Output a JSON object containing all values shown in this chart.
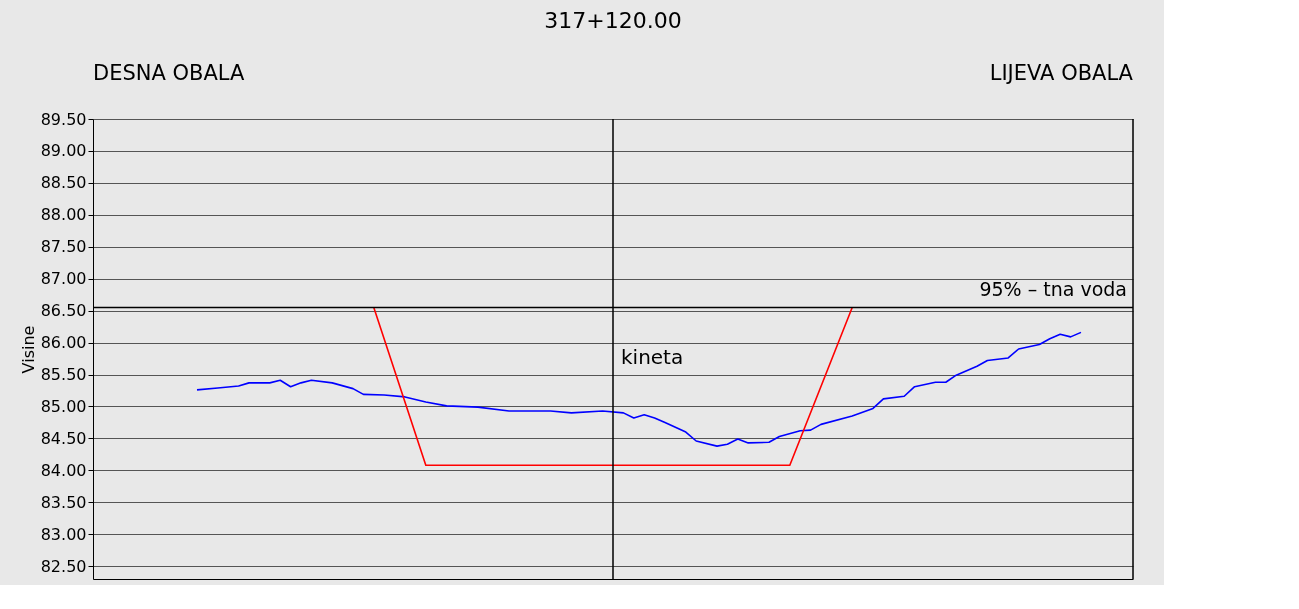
{
  "chart_data": {
    "type": "line",
    "title": "317+120.00",
    "ylabel": "Visine",
    "categories": [
      null,
      null,
      null,
      null,
      null,
      null,
      null,
      null,
      null,
      null,
      null,
      null,
      null,
      null,
      null,
      null,
      null,
      null,
      null,
      null,
      null,
      null,
      null,
      null,
      null,
      null,
      null,
      null,
      null,
      null,
      null,
      null,
      null,
      null,
      null,
      null,
      null,
      null,
      null,
      null,
      null,
      null,
      null,
      null,
      null,
      null,
      null,
      null,
      null,
      null,
      null,
      null,
      null,
      null,
      null,
      null,
      null,
      null,
      null,
      null,
      null,
      null,
      null,
      null,
      null,
      null,
      null,
      null,
      null,
      null,
      null,
      null,
      null,
      null,
      null,
      null,
      null,
      null,
      null,
      null,
      null,
      null,
      null,
      null,
      null,
      null,
      null,
      null,
      null,
      null,
      null,
      null,
      null,
      null,
      null,
      null,
      null,
      null,
      null,
      null,
      null
    ],
    "ylim": [
      82.3,
      89.5
    ],
    "yticks": [
      {
        "value": 82.5,
        "label": "82.50"
      },
      {
        "value": 83,
        "label": "83.00"
      },
      {
        "value": 83.5,
        "label": "83.50"
      },
      {
        "value": 84,
        "label": "84.00"
      },
      {
        "value": 84.5,
        "label": "84.50"
      },
      {
        "value": 85,
        "label": "85.00"
      },
      {
        "value": 85.5,
        "label": "85.50"
      },
      {
        "value": 86,
        "label": "86.00"
      },
      {
        "value": 86.5,
        "label": "86.50"
      },
      {
        "value": 87,
        "label": "87.00"
      },
      {
        "value": 87.5,
        "label": "87.50"
      },
      {
        "value": 88,
        "label": "88.00"
      },
      {
        "value": 88.5,
        "label": "88.50"
      },
      {
        "value": 89,
        "label": "89.00"
      },
      {
        "value": 89.5,
        "label": "89.50"
      }
    ],
    "tick_labels": "y",
    "grid": "y",
    "marker": "none",
    "line_style": "solid",
    "series": [
      {
        "color": "#0000ff",
        "values": [
          null,
          null,
          null,
          null,
          null,
          null,
          null,
          null,
          null,
          null,
          85.26,
          null,
          85.29,
          null,
          85.32,
          85.37,
          null,
          85.37,
          85.41,
          85.31,
          85.37,
          85.41,
          null,
          85.37,
          null,
          85.28,
          85.19,
          null,
          85.18,
          null,
          85.15,
          null,
          85.07,
          null,
          85.01,
          null,
          null,
          84.99,
          null,
          null,
          84.93,
          null,
          84.93,
          null,
          84.93,
          null,
          84.9,
          null,
          null,
          84.93,
          null,
          84.9,
          84.82,
          84.87,
          84.82,
          84.75,
          null,
          84.6,
          84.46,
          null,
          84.38,
          84.41,
          84.49,
          84.43,
          null,
          84.44,
          84.53,
          null,
          84.62,
          84.63,
          84.72,
          null,
          null,
          84.85,
          null,
          84.97,
          85.12,
          null,
          85.16,
          85.31,
          null,
          85.38,
          85.38,
          85.49,
          null,
          85.63,
          85.72,
          null,
          85.76,
          85.9,
          null,
          85.97,
          86.06,
          86.13,
          86.09,
          86.16,
          null,
          null,
          null,
          null,
          null
        ]
      },
      {
        "color": "#ff0000",
        "values": [
          null,
          null,
          null,
          null,
          null,
          null,
          null,
          null,
          null,
          null,
          null,
          null,
          null,
          null,
          null,
          null,
          null,
          null,
          null,
          null,
          null,
          null,
          null,
          null,
          null,
          null,
          null,
          86.55,
          null,
          null,
          null,
          null,
          84.08,
          null,
          null,
          null,
          null,
          null,
          null,
          null,
          null,
          null,
          null,
          null,
          null,
          null,
          null,
          null,
          null,
          null,
          null,
          null,
          null,
          null,
          null,
          null,
          null,
          null,
          null,
          null,
          null,
          null,
          null,
          null,
          null,
          null,
          null,
          84.08,
          null,
          null,
          null,
          null,
          null,
          86.55,
          null,
          null,
          null,
          null,
          null,
          null,
          null,
          null,
          null,
          null,
          null,
          null,
          null,
          null,
          null,
          null,
          null,
          null,
          null,
          null,
          null,
          null,
          null,
          null,
          null,
          null,
          null
        ]
      }
    ],
    "ref_lines": [
      {
        "axis": "y",
        "value": 86.55,
        "label": "95% – tna voda",
        "color": "#000000"
      },
      {
        "axis": "x",
        "color": "#000000"
      }
    ],
    "annotations": [
      "DESNA OBALA",
      "LIJEVA OBALA",
      "kineta"
    ]
  }
}
